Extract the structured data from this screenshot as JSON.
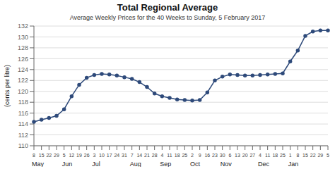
{
  "chart_data": {
    "type": "line",
    "title": "Total Regional Average",
    "subtitle": "Average Weekly Prices for the 40 Weeks to Sunday, 5 February 2017",
    "y_label": "(cents per litre)",
    "categories": [
      "8",
      "15",
      "22",
      "29",
      "5",
      "12",
      "19",
      "26",
      "3",
      "10",
      "17",
      "24",
      "31",
      "7",
      "14",
      "21",
      "28",
      "4",
      "11",
      "18",
      "25",
      "2",
      "9",
      "16",
      "23",
      "30",
      "6",
      "13",
      "20",
      "27",
      "4",
      "11",
      "18",
      "25",
      "1",
      "8",
      "15",
      "22",
      "29",
      "5"
    ],
    "values": [
      114.4,
      114.8,
      115.1,
      115.5,
      116.7,
      119.1,
      121.2,
      122.5,
      123.0,
      123.2,
      123.1,
      122.9,
      122.6,
      122.3,
      121.7,
      120.8,
      119.6,
      119.1,
      118.8,
      118.5,
      118.4,
      118.3,
      118.4,
      119.8,
      122.0,
      122.7,
      123.1,
      123.0,
      122.9,
      122.9,
      123.0,
      123.1,
      123.2,
      123.3,
      125.5,
      127.5,
      130.2,
      131.0,
      131.2,
      131.2
    ],
    "color": "#2E4A7A",
    "marker": "circle",
    "ylim": [
      110,
      132
    ],
    "yticks": [
      110,
      112,
      114,
      116,
      118,
      120,
      122,
      124,
      126,
      128,
      130,
      132
    ],
    "grid": true,
    "annotations": [
      {
        "text": "May",
        "index": 0
      },
      {
        "text": "Jun",
        "index": 4
      },
      {
        "text": "Jul",
        "index": 8
      },
      {
        "text": "Aug",
        "index": 13
      },
      {
        "text": "Sep",
        "index": 17
      },
      {
        "text": "Oct",
        "index": 21
      },
      {
        "text": "Nov",
        "index": 25
      },
      {
        "text": "Dec",
        "index": 30
      },
      {
        "text": "Jan",
        "index": 34
      }
    ]
  }
}
